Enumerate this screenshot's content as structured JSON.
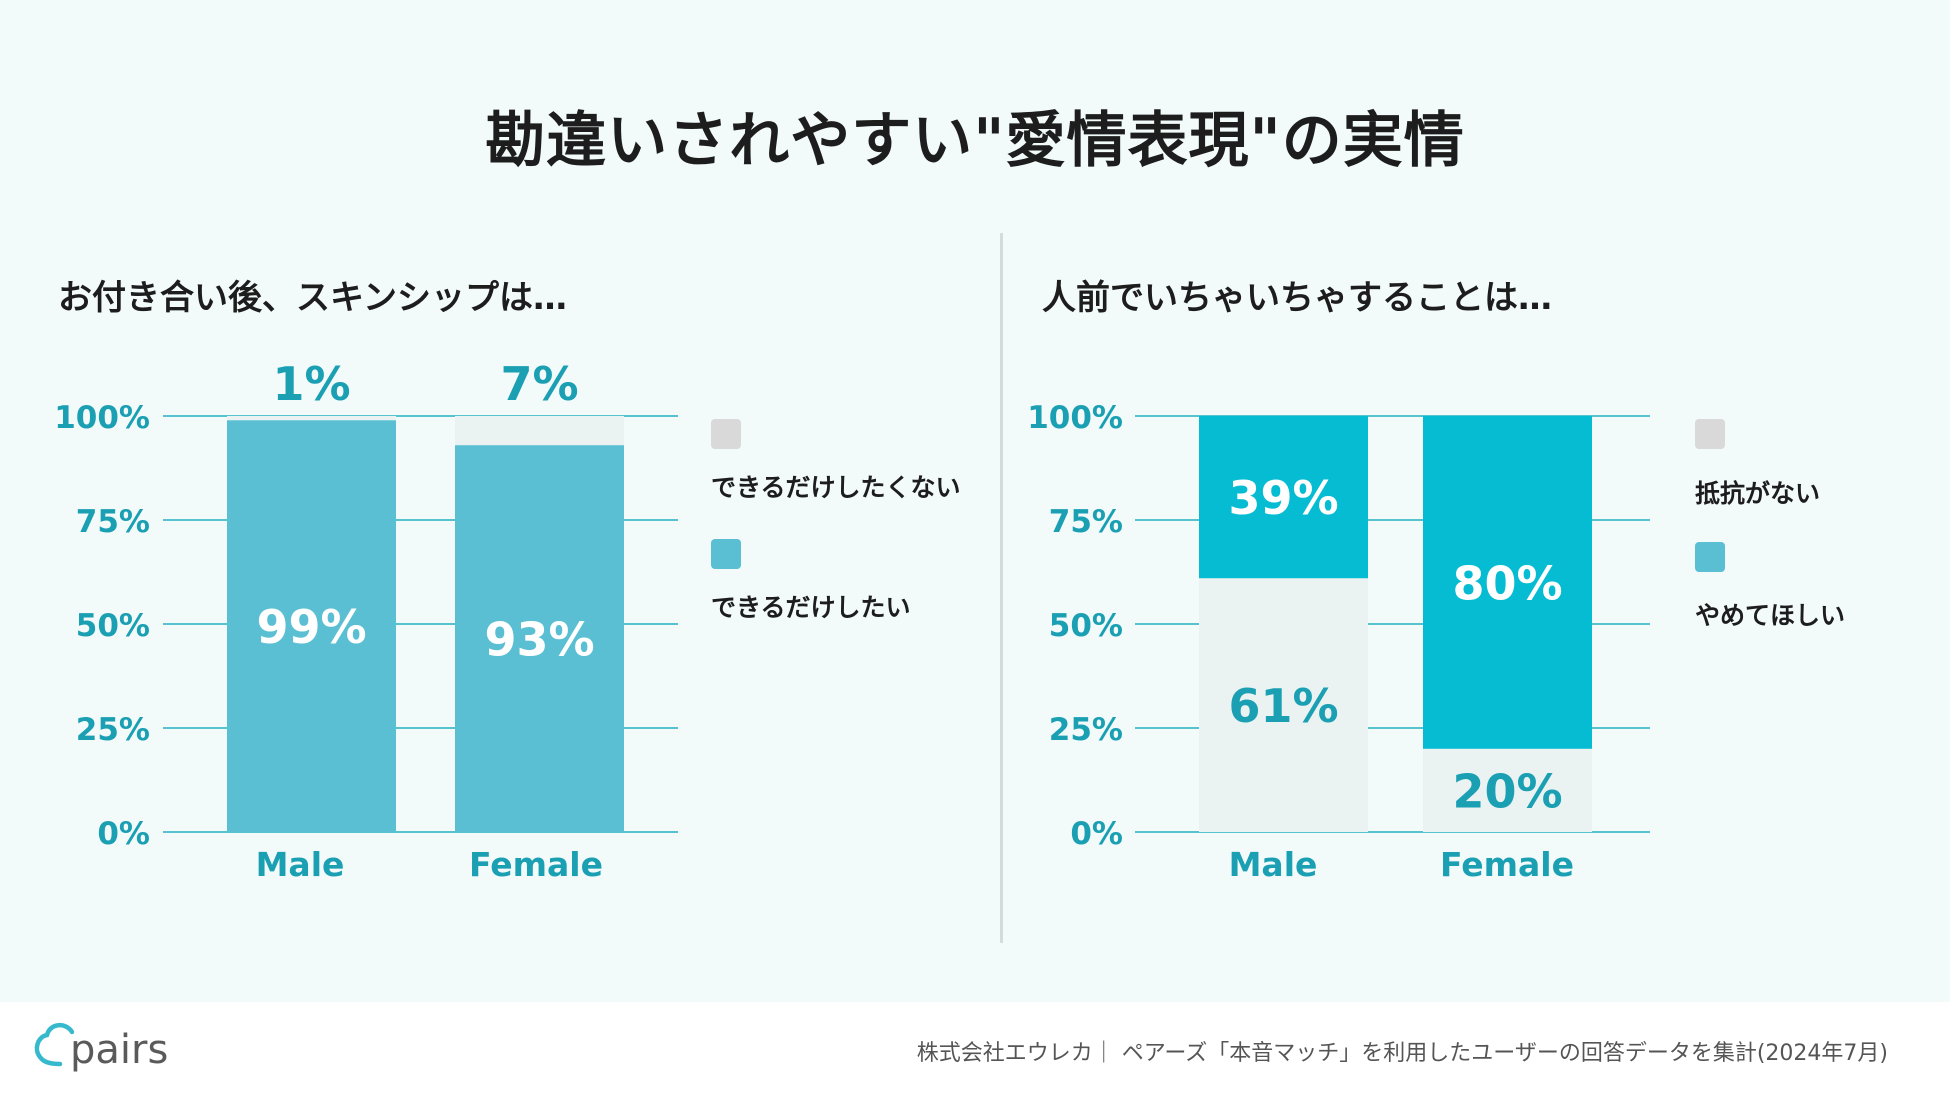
{
  "title": "勘違いされやすい\"愛情表現\"の実情",
  "colors": {
    "teal": "#5bbfd3",
    "cyan": "#05bcd2",
    "light": "#eaf2f2",
    "legend_grey": "#d9d9d9",
    "axis_text": "#1a9fb3",
    "gridline": "#57c2d0"
  },
  "chart_data": [
    {
      "type": "bar",
      "stacked": true,
      "title": "お付き合い後、スキンシップは…",
      "categories": [
        "Male",
        "Female"
      ],
      "yticks": [
        "0%",
        "25%",
        "50%",
        "75%",
        "100%"
      ],
      "ylim": [
        0,
        100
      ],
      "series": [
        {
          "name": "できるだけしたい",
          "values": [
            99,
            93
          ],
          "labels": [
            "99%",
            "93%"
          ],
          "color": "#5bbfd3",
          "label_color": "#ffffff"
        },
        {
          "name": "できるだけしたくない",
          "values": [
            1,
            7
          ],
          "labels": [
            "1%",
            "7%"
          ],
          "color": "#eaf2f2",
          "label_color": "#1a9fb3"
        }
      ],
      "legend": [
        {
          "label": "できるだけしたくない",
          "color": "#d9d9d9"
        },
        {
          "label": "できるだけしたい",
          "color": "#5bbfd3"
        }
      ],
      "legend_position": "right"
    },
    {
      "type": "bar",
      "stacked": true,
      "title": "人前でいちゃいちゃすることは…",
      "categories": [
        "Male",
        "Female"
      ],
      "yticks": [
        "0%",
        "25%",
        "50%",
        "75%",
        "100%"
      ],
      "ylim": [
        0,
        100
      ],
      "series": [
        {
          "name": "抵抗がない",
          "values": [
            61,
            20
          ],
          "labels": [
            "61%",
            "20%"
          ],
          "color": "#eaf2f2",
          "label_color": "#1a9fb3"
        },
        {
          "name": "やめてほしい",
          "values": [
            39,
            80
          ],
          "labels": [
            "39%",
            "80%"
          ],
          "color": "#05bcd2",
          "label_color": "#ffffff"
        }
      ],
      "legend": [
        {
          "label": "抵抗がない",
          "color": "#d9d9d9"
        },
        {
          "label": "やめてほしい",
          "color": "#5bbfd3"
        }
      ],
      "legend_position": "right"
    }
  ],
  "footer": {
    "logo_text": "pairs",
    "source": "株式会社エウレカ｜ ペアーズ「本音マッチ」を利用したユーザーの回答データを集計(2024年7月)"
  }
}
